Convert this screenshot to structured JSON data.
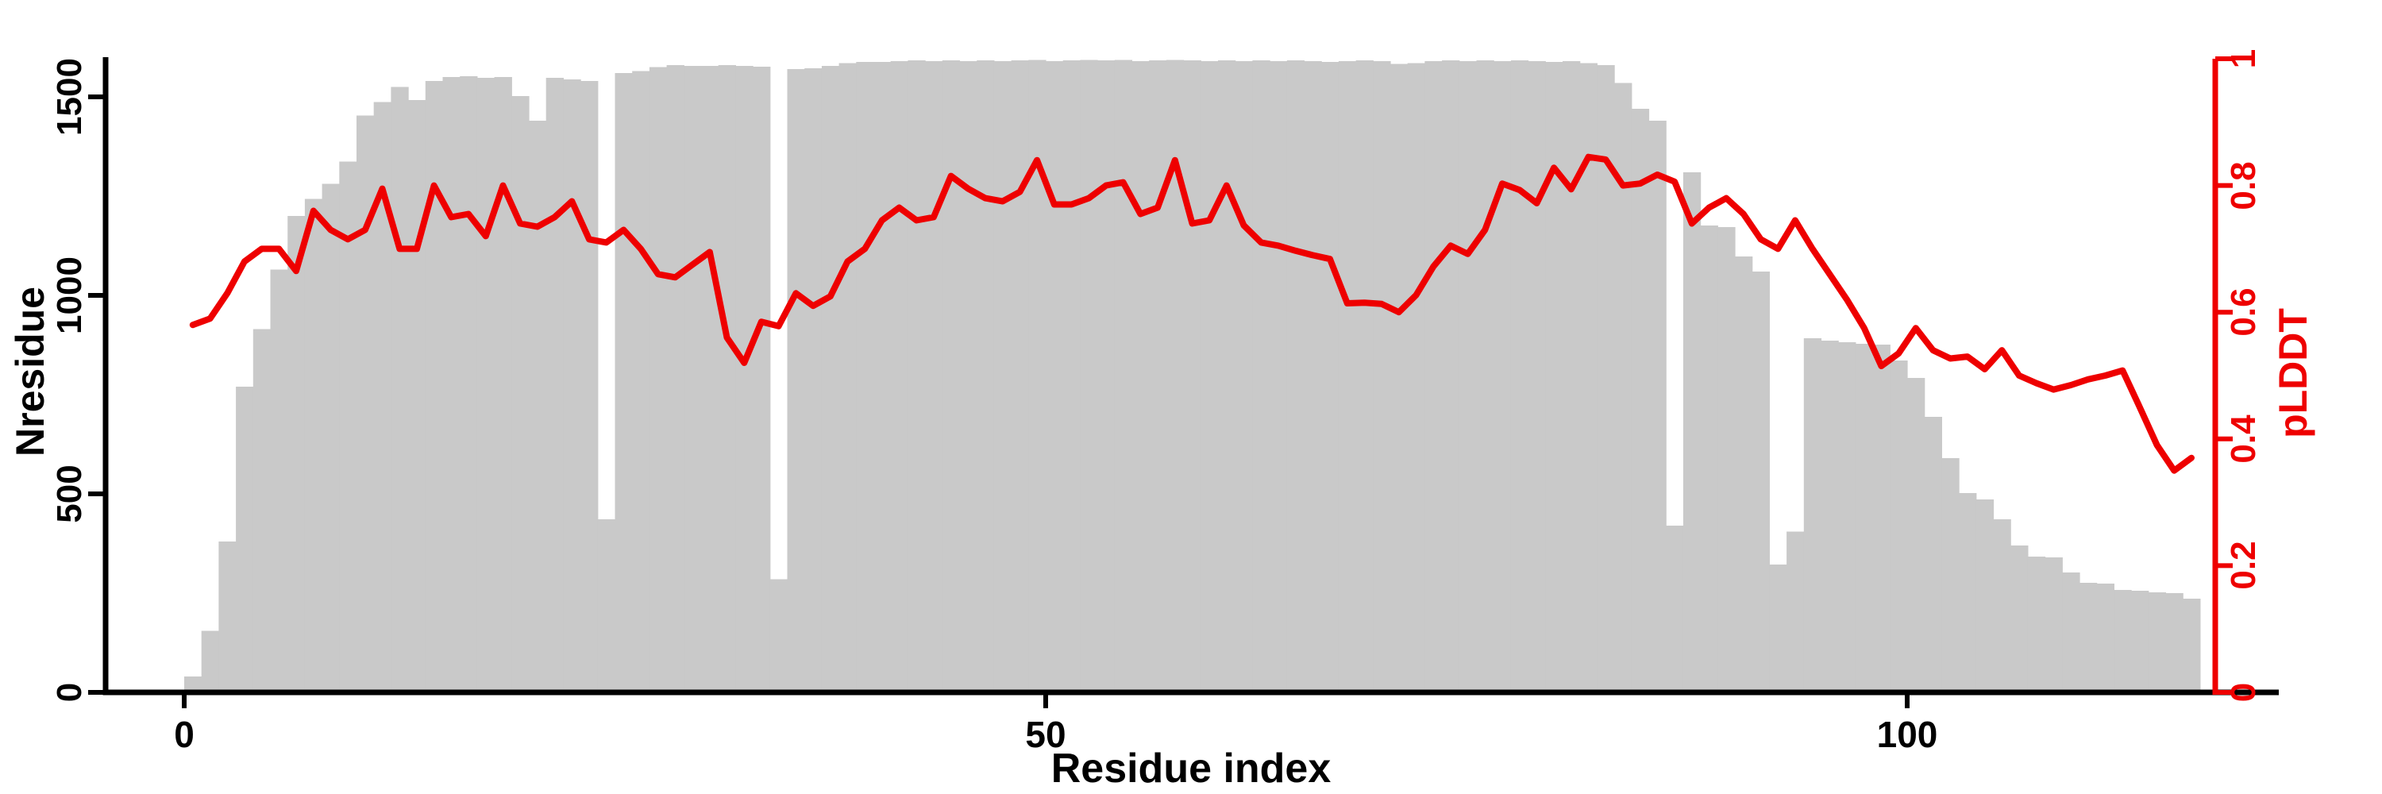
{
  "colors": {
    "background": "#ffffff",
    "bar_fill": "#c9c9c9",
    "line_red": "#ee0000",
    "axis_black": "#000000"
  },
  "axes": {
    "x": {
      "label": "Residue index",
      "ticks": [
        "0",
        "50",
        "100"
      ],
      "tick_values": [
        0,
        50,
        100
      ]
    },
    "y_left": {
      "label": "Nresidue",
      "ticks": [
        "0",
        "500",
        "1000",
        "1500"
      ],
      "tick_values": [
        0,
        500,
        1000,
        1500
      ],
      "range": [
        0,
        1600
      ]
    },
    "y_right": {
      "label": "pLDDT",
      "ticks": [
        "0",
        "0.2",
        "0.4",
        "0.6",
        "0.8",
        "1"
      ],
      "tick_values": [
        0,
        0.2,
        0.4,
        0.6,
        0.8,
        1
      ],
      "range": [
        0,
        1
      ]
    }
  },
  "chart_data": {
    "type": "bar+line",
    "title": "",
    "xlabel": "Residue index",
    "ylabel_left": "Nresidue",
    "ylabel_right": "pLDDT",
    "xlim": [
      0,
      117
    ],
    "ylim_left": [
      0,
      1600
    ],
    "ylim_right": [
      0,
      1
    ],
    "grid": false,
    "legend": "none",
    "x": [
      0,
      1,
      2,
      3,
      4,
      5,
      6,
      7,
      8,
      9,
      10,
      11,
      12,
      13,
      14,
      15,
      16,
      17,
      18,
      19,
      20,
      21,
      22,
      23,
      24,
      25,
      26,
      27,
      28,
      29,
      30,
      31,
      32,
      33,
      34,
      35,
      36,
      37,
      38,
      39,
      40,
      41,
      42,
      43,
      44,
      45,
      46,
      47,
      48,
      49,
      50,
      51,
      52,
      53,
      54,
      55,
      56,
      57,
      58,
      59,
      60,
      61,
      62,
      63,
      64,
      65,
      66,
      67,
      68,
      69,
      70,
      71,
      72,
      73,
      74,
      75,
      76,
      77,
      78,
      79,
      80,
      81,
      82,
      83,
      84,
      85,
      86,
      87,
      88,
      89,
      90,
      91,
      92,
      93,
      94,
      95,
      96,
      97,
      98,
      99,
      100,
      101,
      102,
      103,
      104,
      105,
      106,
      107,
      108,
      109,
      110,
      111,
      112,
      113,
      114,
      115,
      116
    ],
    "series": [
      {
        "name": "Nresidue",
        "type": "bar",
        "axis": "left",
        "color": "#c9c9c9",
        "values": [
          40,
          155,
          380,
          770,
          915,
          1065,
          1200,
          1243,
          1281,
          1337,
          1453,
          1487,
          1525,
          1492,
          1540,
          1550,
          1552,
          1548,
          1550,
          1502,
          1440,
          1548,
          1544,
          1540,
          436,
          1560,
          1565,
          1575,
          1580,
          1578,
          1578,
          1580,
          1578,
          1576,
          285,
          1570,
          1572,
          1578,
          1585,
          1588,
          1588,
          1590,
          1592,
          1590,
          1592,
          1590,
          1592,
          1590,
          1592,
          1593,
          1590,
          1592,
          1593,
          1592,
          1593,
          1590,
          1592,
          1593,
          1592,
          1590,
          1592,
          1590,
          1592,
          1590,
          1592,
          1590,
          1588,
          1590,
          1592,
          1590,
          1583,
          1585,
          1590,
          1592,
          1590,
          1592,
          1590,
          1592,
          1590,
          1588,
          1590,
          1585,
          1580,
          1535,
          1470,
          1440,
          420,
          1310,
          1176,
          1172,
          1098,
          1060,
          322,
          405,
          892,
          886,
          882,
          878,
          876,
          836,
          792,
          694,
          590,
          502,
          486,
          436,
          370,
          342,
          340,
          302,
          276,
          274,
          258,
          256,
          252,
          250,
          236
        ]
      },
      {
        "name": "pLDDT",
        "type": "line",
        "axis": "right",
        "color": "#ee0000",
        "values": [
          0.58,
          0.59,
          0.63,
          0.68,
          0.7,
          0.7,
          0.665,
          0.76,
          0.73,
          0.715,
          0.73,
          0.795,
          0.7,
          0.7,
          0.8,
          0.75,
          0.755,
          0.72,
          0.8,
          0.74,
          0.735,
          0.75,
          0.775,
          0.715,
          0.71,
          0.73,
          0.7,
          0.66,
          0.655,
          0.675,
          0.695,
          0.56,
          0.52,
          0.585,
          0.578,
          0.63,
          0.61,
          0.625,
          0.68,
          0.7,
          0.745,
          0.765,
          0.745,
          0.75,
          0.815,
          0.795,
          0.78,
          0.775,
          0.79,
          0.84,
          0.77,
          0.77,
          0.78,
          0.8,
          0.805,
          0.755,
          0.765,
          0.84,
          0.74,
          0.745,
          0.8,
          0.737,
          0.71,
          0.705,
          0.697,
          0.69,
          0.684,
          0.614,
          0.615,
          0.613,
          0.6,
          0.627,
          0.672,
          0.705,
          0.692,
          0.73,
          0.803,
          0.793,
          0.772,
          0.828,
          0.794,
          0.845,
          0.841,
          0.8,
          0.803,
          0.817,
          0.806,
          0.74,
          0.765,
          0.78,
          0.755,
          0.715,
          0.7,
          0.745,
          0.7,
          0.66,
          0.62,
          0.575,
          0.515,
          0.535,
          0.575,
          0.54,
          0.527,
          0.53,
          0.51,
          0.54,
          0.5,
          0.488,
          0.478,
          0.485,
          0.494,
          0.5,
          0.508,
          0.45,
          0.39,
          0.35,
          0.37
        ]
      }
    ]
  }
}
